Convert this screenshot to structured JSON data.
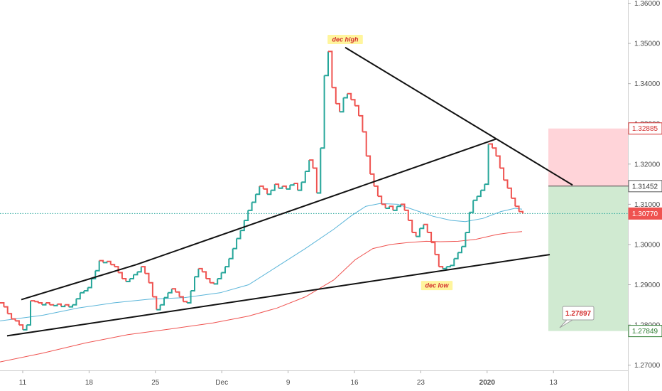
{
  "chart_data": {
    "type": "line",
    "chart_style": "tradingview-line-break",
    "grid": false,
    "y_scale": {
      "min": 1.2687,
      "max": 1.3608
    },
    "y_ticks": [
      "1.36000",
      "1.35000",
      "1.34000",
      "1.33000",
      "1.32000",
      "1.31000",
      "1.30000",
      "1.29000",
      "1.28000",
      "1.27000"
    ],
    "x_tick_labels": [
      "11",
      "18",
      "25",
      "Dec",
      "9",
      "16",
      "23",
      "2020",
      "13"
    ],
    "price_series": {
      "color_up": "#26a69a",
      "color_down": "#ef5350",
      "values": [
        1.2855,
        1.2845,
        1.2828,
        1.2815,
        1.281,
        1.28,
        1.2788,
        1.28,
        1.286,
        1.2858,
        1.2855,
        1.285,
        1.2855,
        1.285,
        1.2848,
        1.2852,
        1.2846,
        1.285,
        1.2845,
        1.285,
        1.2865,
        1.288,
        1.2885,
        1.2893,
        1.2915,
        1.2935,
        1.296,
        1.2955,
        1.2958,
        1.295,
        1.2945,
        1.293,
        1.2915,
        1.2908,
        1.2915,
        1.2925,
        1.2932,
        1.2945,
        1.2928,
        1.2905,
        1.287,
        1.2838,
        1.285,
        1.2868,
        1.288,
        1.289,
        1.2882,
        1.287,
        1.2858,
        1.2855,
        1.2885,
        1.292,
        1.294,
        1.2932,
        1.2915,
        1.2905,
        1.2902,
        1.2915,
        1.293,
        1.2945,
        1.2965,
        1.299,
        1.3015,
        1.3035,
        1.306,
        1.3085,
        1.3105,
        1.3125,
        1.3145,
        1.3138,
        1.3125,
        1.3135,
        1.315,
        1.314,
        1.3145,
        1.3138,
        1.3148,
        1.3152,
        1.3135,
        1.3155,
        1.3182,
        1.321,
        1.319,
        1.3128,
        1.324,
        1.342,
        1.348,
        1.339,
        1.335,
        1.333,
        1.3365,
        1.3375,
        1.336,
        1.3345,
        1.332,
        1.328,
        1.322,
        1.3175,
        1.3145,
        1.312,
        1.31,
        1.309,
        1.3095,
        1.3085,
        1.3095,
        1.31,
        1.3085,
        1.306,
        1.303,
        1.302,
        1.304,
        1.305,
        1.303,
        1.3005,
        1.2975,
        1.2945,
        1.294,
        1.2945,
        1.2948,
        1.2965,
        1.298,
        1.2995,
        1.303,
        1.308,
        1.311,
        1.312,
        1.3135,
        1.315,
        1.325,
        1.324,
        1.322,
        1.319,
        1.316,
        1.314,
        1.3115,
        1.3095,
        1.3082,
        1.3077
      ]
    },
    "moving_averages": [
      {
        "color": "#5ab5d9",
        "points": [
          [
            0,
            1.281
          ],
          [
            60,
            1.2824
          ],
          [
            110,
            1.2842
          ],
          [
            160,
            1.2855
          ],
          [
            210,
            1.2864
          ],
          [
            260,
            1.2868
          ],
          [
            310,
            1.288
          ],
          [
            350,
            1.29
          ],
          [
            390,
            1.2945
          ],
          [
            430,
            1.299
          ],
          [
            470,
            1.3038
          ],
          [
            495,
            1.3072
          ],
          [
            515,
            1.3095
          ],
          [
            535,
            1.3102
          ],
          [
            560,
            1.31
          ],
          [
            585,
            1.3085
          ],
          [
            610,
            1.307
          ],
          [
            635,
            1.306
          ],
          [
            655,
            1.3057
          ],
          [
            680,
            1.3065
          ],
          [
            705,
            1.3082
          ],
          [
            725,
            1.309
          ],
          [
            735,
            1.3088
          ]
        ]
      },
      {
        "color": "#ef5350",
        "points": [
          [
            0,
            1.2708
          ],
          [
            60,
            1.273
          ],
          [
            120,
            1.2755
          ],
          [
            180,
            1.2776
          ],
          [
            240,
            1.279
          ],
          [
            300,
            1.2805
          ],
          [
            350,
            1.2822
          ],
          [
            390,
            1.2842
          ],
          [
            430,
            1.287
          ],
          [
            470,
            1.2912
          ],
          [
            500,
            1.2962
          ],
          [
            525,
            1.299
          ],
          [
            550,
            1.3
          ],
          [
            575,
            1.3005
          ],
          [
            600,
            1.3008
          ],
          [
            620,
            1.3007
          ],
          [
            645,
            1.3008
          ],
          [
            670,
            1.3013
          ],
          [
            700,
            1.3025
          ],
          [
            720,
            1.303
          ],
          [
            735,
            1.3032
          ]
        ]
      }
    ],
    "trend_lines": [
      {
        "from": [
          30,
          1.2863
        ],
        "to": [
          192,
          1.295
        ]
      },
      {
        "from": [
          192,
          1.295
        ],
        "to": [
          698,
          1.3262
        ]
      },
      {
        "from": [
          10,
          1.2773
        ],
        "to": [
          774,
          1.2975
        ]
      },
      {
        "from": [
          486,
          1.349
        ],
        "to": [
          806,
          1.3148
        ]
      }
    ],
    "annotations": [
      {
        "text": "dec high",
        "x": 486,
        "y": 1.351
      },
      {
        "text": "dec low",
        "x": 615,
        "y": 1.2898
      }
    ],
    "position_tool": {
      "x_start": 772,
      "x_end": 884,
      "target_top": 1.32885,
      "entry": 1.31452,
      "bottom": 1.27849
    },
    "price_labels": [
      {
        "value": "1.32885",
        "y": 1.32885,
        "bg": "#ffffff",
        "fg": "#d32f2f",
        "border": "#d32f2f"
      },
      {
        "value": "1.31452",
        "y": 1.31452,
        "bg": "#ffffff",
        "fg": "#333333",
        "border": "#555555"
      },
      {
        "value": "1.30770",
        "y": 1.3077,
        "bg": "#ef5350",
        "fg": "#ffffff",
        "border": "#ef5350"
      },
      {
        "value": "1.27849",
        "y": 1.27849,
        "bg": "#ffffff",
        "fg": "#2e7d32",
        "border": "#2e7d32"
      }
    ],
    "current_price_line": 1.3077,
    "callout": {
      "value": "1.27897",
      "y": 1.27897
    }
  }
}
